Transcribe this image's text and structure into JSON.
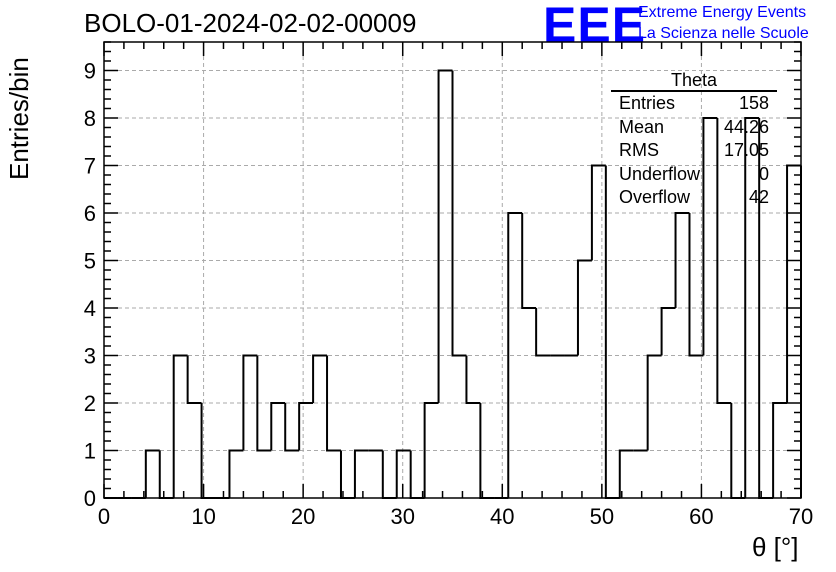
{
  "header": {
    "title": "BOLO-01-2024-02-02-00009",
    "logo_text": "EEE",
    "logo_line1": "Extreme Energy Events",
    "logo_line2": "La Scienza nelle Scuole"
  },
  "stats_box": {
    "title": "Theta",
    "rows": [
      {
        "label": "Entries",
        "value": "158"
      },
      {
        "label": "Mean",
        "value": "44.26"
      },
      {
        "label": "RMS",
        "value": "17.05"
      },
      {
        "label": "Underflow",
        "value": "0"
      },
      {
        "label": "Overflow",
        "value": "42"
      }
    ]
  },
  "colors": {
    "logo": "#0000ff",
    "line": "#000000",
    "grid": "#aaaaaa"
  },
  "chart_data": {
    "type": "histogram",
    "title": "BOLO-01-2024-02-02-00009",
    "xlabel": "θ [°]",
    "ylabel": "Entries/bin",
    "xlim": [
      0,
      70
    ],
    "ylim": [
      0,
      9.6
    ],
    "grid": true,
    "bin_width": 1.4,
    "x_ticks": [
      0,
      10,
      20,
      30,
      40,
      50,
      60,
      70
    ],
    "y_ticks": [
      0,
      1,
      2,
      3,
      4,
      5,
      6,
      7,
      8,
      9
    ],
    "bin_edges_start": 0,
    "counts": [
      0,
      0,
      0,
      1,
      0,
      3,
      2,
      0,
      0,
      1,
      3,
      1,
      2,
      1,
      2,
      3,
      1,
      0,
      1,
      1,
      0,
      1,
      0,
      2,
      9,
      3,
      2,
      0,
      0,
      6,
      4,
      3,
      3,
      3,
      5,
      7,
      0,
      1,
      1,
      3,
      4,
      6,
      3,
      8,
      2,
      0,
      8,
      0,
      2,
      7
    ]
  }
}
